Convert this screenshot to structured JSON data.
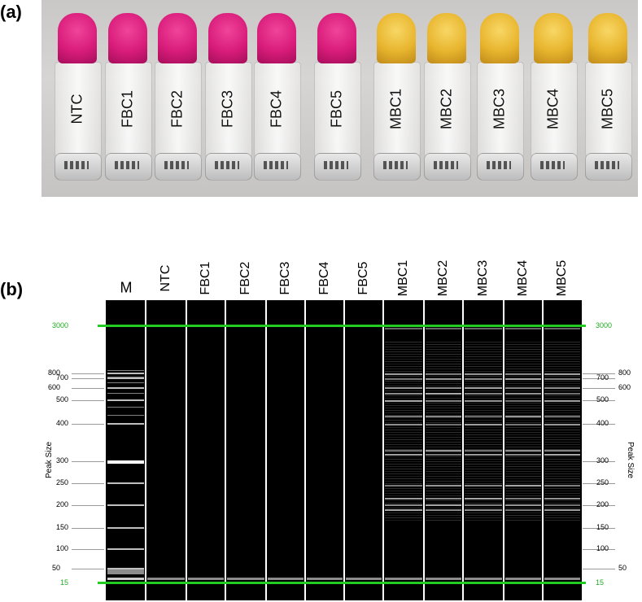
{
  "panel_a": {
    "label": "(a)"
  },
  "panel_b": {
    "label": "(b)"
  },
  "tubes": [
    {
      "label": "NTC",
      "color": "pink"
    },
    {
      "label": "FBC1",
      "color": "pink"
    },
    {
      "label": "FBC2",
      "color": "pink"
    },
    {
      "label": "FBC3",
      "color": "pink"
    },
    {
      "label": "FBC4",
      "color": "pink"
    },
    {
      "label": "FBC5",
      "color": "pink"
    },
    {
      "label": "MBC1",
      "color": "yellow"
    },
    {
      "label": "MBC2",
      "color": "yellow"
    },
    {
      "label": "MBC3",
      "color": "yellow"
    },
    {
      "label": "MBC4",
      "color": "yellow"
    },
    {
      "label": "MBC5",
      "color": "yellow"
    }
  ],
  "gel": {
    "marker_lane_label": "M",
    "sample_lanes": [
      "NTC",
      "FBC1",
      "FBC2",
      "FBC3",
      "FBC4",
      "FBC5",
      "MBC1",
      "MBC2",
      "MBC3",
      "MBC4",
      "MBC5"
    ],
    "y_axis_title": "Peak Size",
    "upper_marker": "3000",
    "lower_marker": "15",
    "ladder": [
      "800",
      "700",
      "600",
      "500",
      "400",
      "300",
      "250",
      "200",
      "150",
      "100",
      "50"
    ],
    "marker_color": "#22cc22"
  }
}
